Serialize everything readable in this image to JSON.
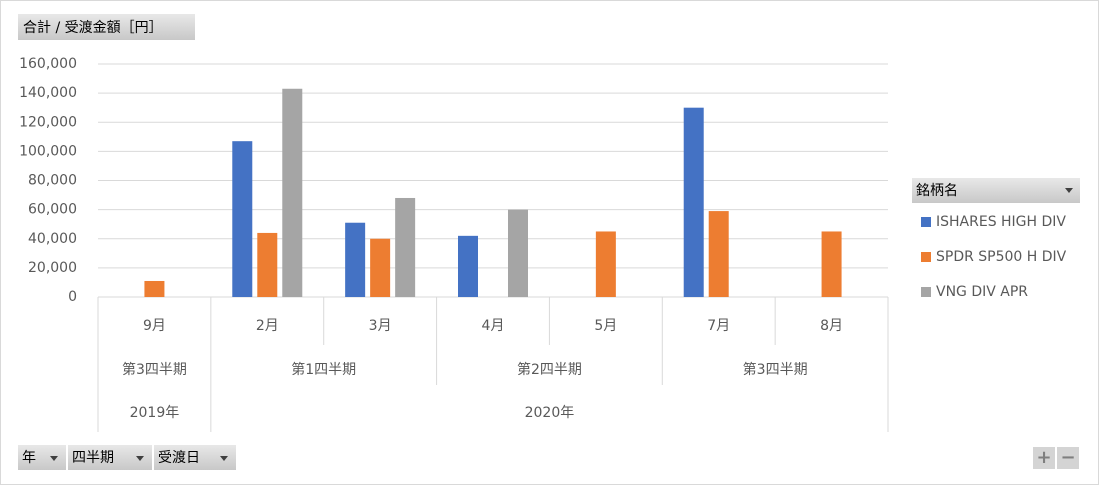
{
  "chart_data": {
    "type": "bar",
    "title": "合計 / 受渡金額［円］",
    "categories": [
      "9月",
      "2月",
      "3月",
      "4月",
      "5月",
      "7月",
      "8月"
    ],
    "quarters": [
      "第3四半期",
      "第1四半期",
      null,
      "第2四半期",
      null,
      "第3四半期",
      null
    ],
    "years": [
      "2019年",
      "2020年",
      null,
      null,
      null,
      null,
      null
    ],
    "series": [
      {
        "name": "ISHARES HIGH DIV",
        "color": "#4472c4",
        "values": [
          null,
          107000,
          51000,
          42000,
          null,
          130000,
          null
        ]
      },
      {
        "name": "SPDR SP500 H DIV",
        "color": "#ed7d31",
        "values": [
          11000,
          44000,
          40000,
          null,
          45000,
          59000,
          45000
        ]
      },
      {
        "name": "VNG DIV APR",
        "color": "#a5a5a5",
        "values": [
          null,
          143000,
          68000,
          60000,
          null,
          null,
          null
        ]
      }
    ],
    "ylim": [
      0,
      160000
    ],
    "yticks": [
      0,
      {
        "value": 20000,
        "label": "20,000"
      },
      {
        "value": 40000,
        "label": "40,000"
      },
      {
        "value": 60000,
        "label": "60,000"
      },
      {
        "value": 80000,
        "label": "80,000"
      },
      {
        "value": 100000,
        "label": "100,000"
      },
      {
        "value": 120000,
        "label": "120,000"
      },
      {
        "value": 140000,
        "label": "140,000"
      },
      {
        "value": 160000,
        "label": "160,000"
      }
    ],
    "grid": true,
    "legend_title": "銘柄名",
    "legend_position": "right",
    "field_buttons": [
      "年",
      "四半期",
      "受渡日"
    ],
    "zoom_buttons": [
      "+",
      "−"
    ]
  }
}
